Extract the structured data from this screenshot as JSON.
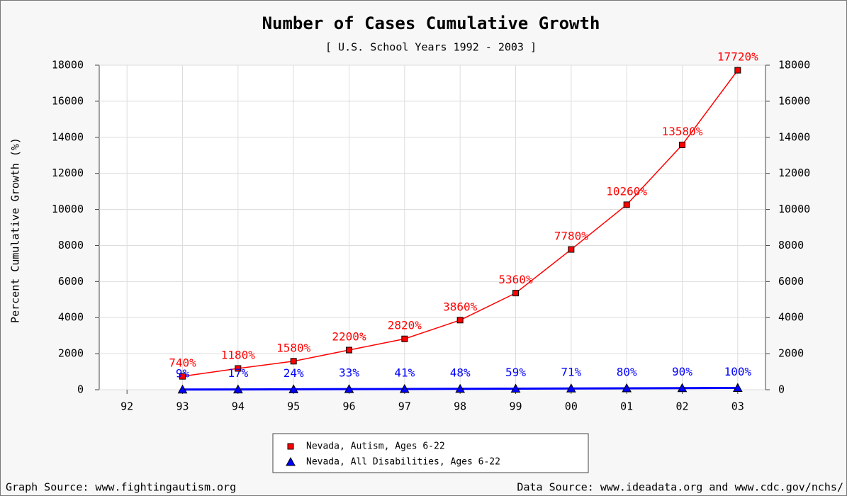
{
  "chart_data": {
    "type": "line",
    "title": "Number of Cases Cumulative Growth",
    "subtitle": "[ U.S. School Years 1992 - 2003 ]",
    "y_label": "Percent Cumulative Growth (%)",
    "categories": [
      "92",
      "93",
      "94",
      "95",
      "96",
      "97",
      "98",
      "99",
      "00",
      "01",
      "02",
      "03"
    ],
    "series": [
      {
        "name": "Nevada, Autism, Ages 6-22",
        "color": "#ff0000",
        "marker": "square",
        "values": [
          null,
          740,
          1180,
          1580,
          2200,
          2820,
          3860,
          5360,
          7780,
          10260,
          13580,
          17720
        ],
        "value_labels": [
          null,
          "740%",
          "1180%",
          "1580%",
          "2200%",
          "2820%",
          "3860%",
          "5360%",
          "7780%",
          "10260%",
          "13580%",
          "17720%"
        ]
      },
      {
        "name": "Nevada, All Disabilities, Ages 6-22",
        "color": "#0000ff",
        "marker": "triangle",
        "values": [
          null,
          9,
          17,
          24,
          33,
          41,
          48,
          59,
          71,
          80,
          90,
          100
        ],
        "value_labels": [
          null,
          "9%",
          "17%",
          "24%",
          "33%",
          "41%",
          "48%",
          "59%",
          "71%",
          "80%",
          "90%",
          "100%"
        ]
      }
    ],
    "ylim": [
      0,
      18000
    ],
    "yticks": [
      0,
      2000,
      4000,
      6000,
      8000,
      10000,
      12000,
      14000,
      16000,
      18000
    ],
    "y2lim": [
      0,
      18000
    ],
    "y2ticks": [
      0,
      2000,
      4000,
      6000,
      8000,
      10000,
      12000,
      14000,
      16000,
      18000
    ],
    "grid": true,
    "legend": "bottom",
    "footer_left": "Graph Source: www.fightingautism.org",
    "footer_right": "Data Source: www.ideadata.org and www.cdc.gov/nchs/"
  }
}
